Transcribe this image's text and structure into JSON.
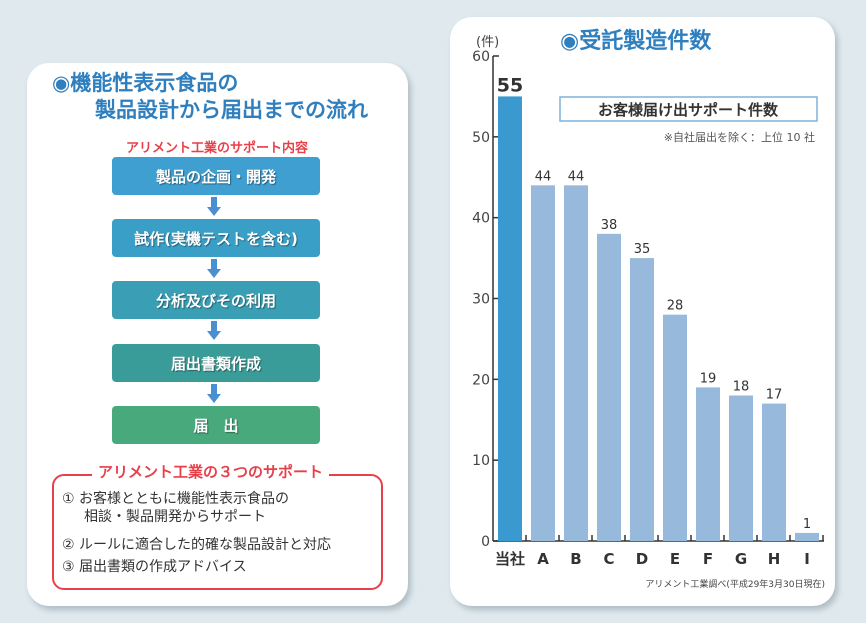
{
  "flow": {
    "title_line1": "◉機能性表示食品の",
    "title_line2": "製品設計から届出までの流れ",
    "support_label": "アリメント工業のサポート内容",
    "steps": [
      "製品の企画・開発",
      "試作(実機テストを含む)",
      "分析及びその利用",
      "届出書類作成",
      "届　出"
    ],
    "step_colors": [
      "#3e9fd0",
      "#3a9fc6",
      "#3a9fb4",
      "#3a9c98",
      "#48a97c"
    ],
    "support_title": "アリメント工業の３つのサポート",
    "points": [
      {
        "num": "①",
        "line1": "お客様とともに機能性表示食品の",
        "line2": "相談・製品開発からサポート"
      },
      {
        "num": "②",
        "line1": "ルールに適合した的確な製品設計と対応"
      },
      {
        "num": "③",
        "line1": "届出書類の作成アドバイス"
      }
    ]
  },
  "chart_data": {
    "type": "bar",
    "title": "◉受託製造件数",
    "subtitle": "お客様届け出サポート件数",
    "note": "※自社届出を除く：上位 10 社",
    "source": "アリメント工業調べ(平成29年3月30日現在)",
    "ylabel": "(件)",
    "xlabel": "",
    "categories": [
      "当社",
      "A",
      "B",
      "C",
      "D",
      "E",
      "F",
      "G",
      "H",
      "I"
    ],
    "values": [
      55,
      44,
      44,
      38,
      35,
      28,
      19,
      18,
      17,
      1
    ],
    "ylim": [
      0,
      60
    ],
    "yticks": [
      0,
      10,
      20,
      30,
      40,
      50,
      60
    ],
    "highlight_color": "#3a9ad0",
    "bar_color": "#96b9dc",
    "grid": false
  }
}
